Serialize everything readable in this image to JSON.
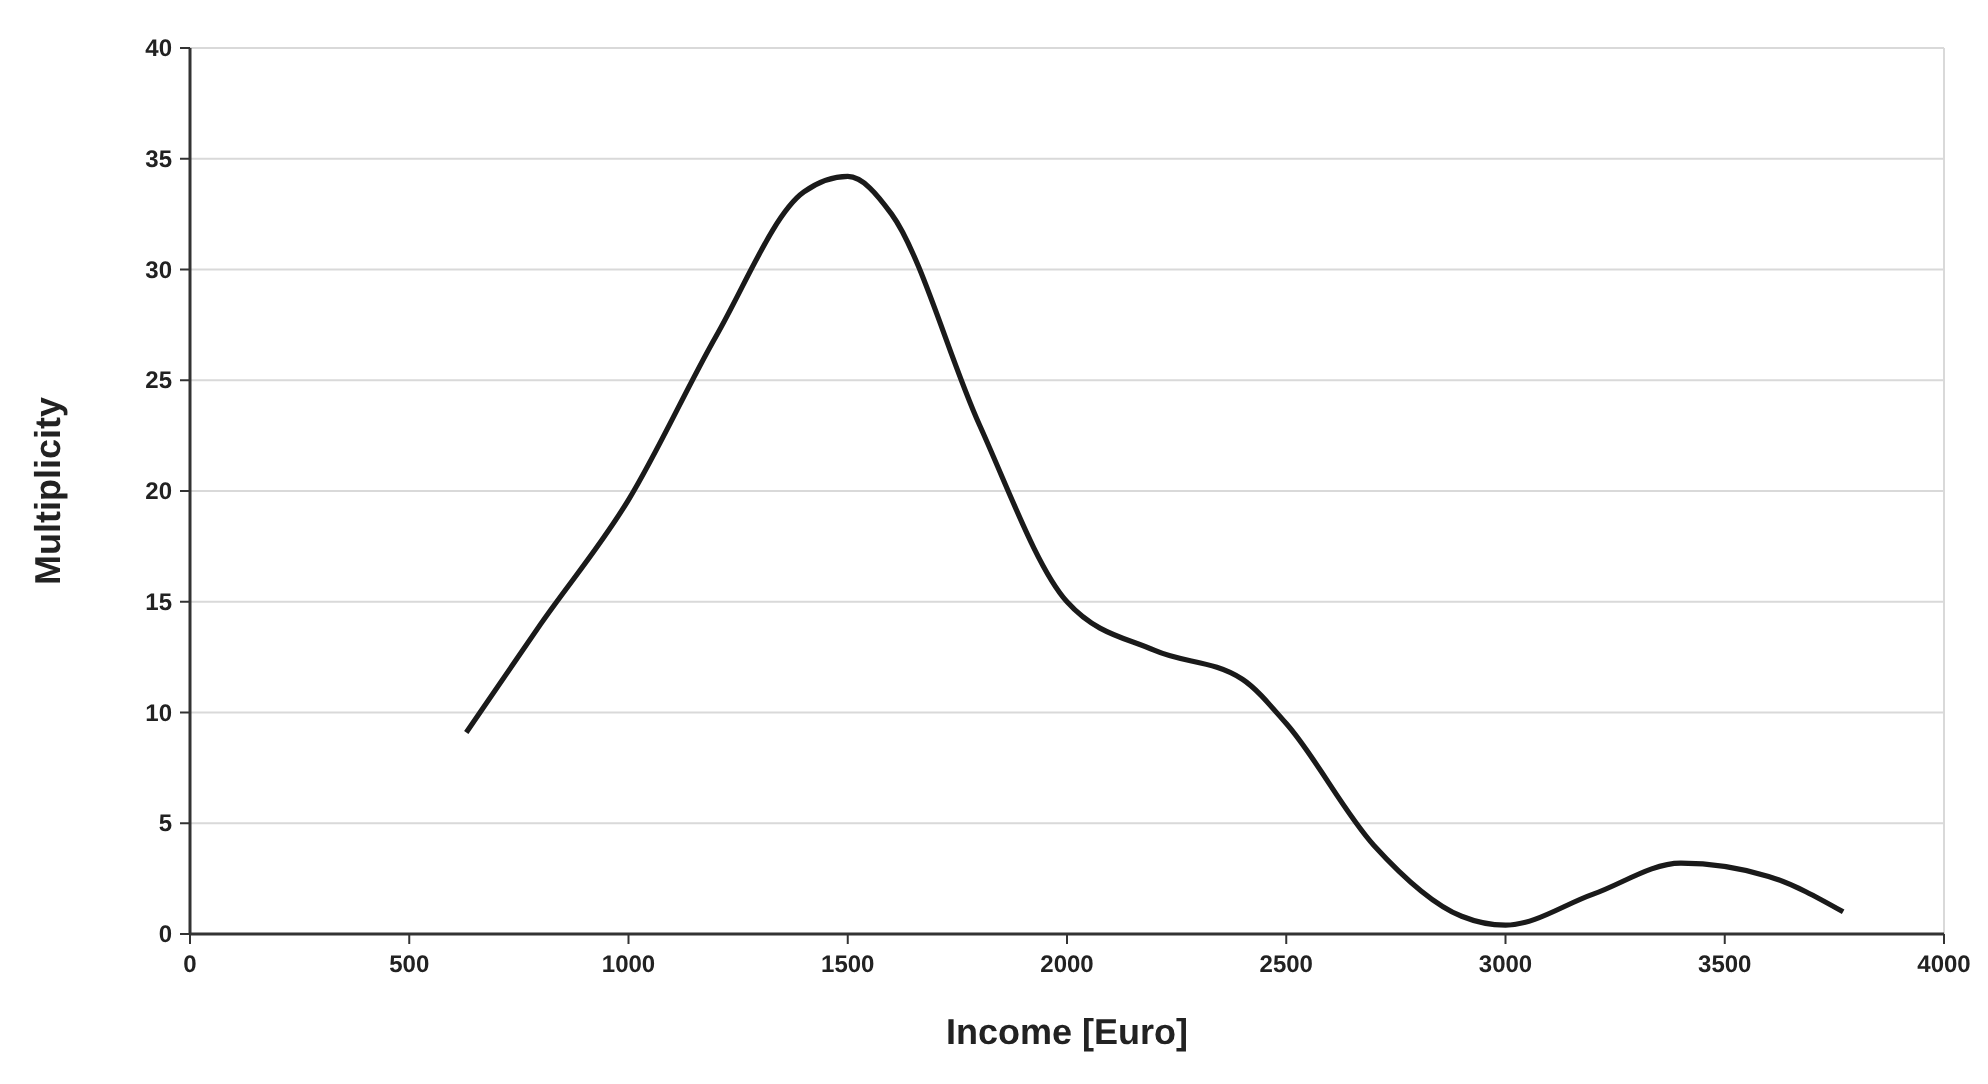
{
  "chart_data": {
    "type": "line",
    "xlabel": "Income [Euro]",
    "ylabel": "Multiplicity",
    "x": [
      630,
      800,
      1000,
      1200,
      1400,
      1500,
      1600,
      1800,
      2000,
      2200,
      2400,
      2500,
      2700,
      2900,
      3000,
      3200,
      3400,
      3600,
      3770
    ],
    "series": [
      {
        "color": "#1a1a1a",
        "values": [
          9.1,
          14,
          19.6,
          27,
          33.5,
          34.2,
          32.5,
          23,
          15,
          12.8,
          11.5,
          9.5,
          4,
          0.8,
          0.4,
          1.8,
          3.2,
          2.6,
          1.0
        ]
      }
    ],
    "xlim": [
      0,
      4000
    ],
    "xticks": [
      0,
      500,
      1000,
      1500,
      2000,
      2500,
      3000,
      3500,
      4000
    ],
    "ylim": [
      0,
      40
    ],
    "yticks": [
      0,
      5,
      10,
      15,
      20,
      25,
      30,
      35,
      40
    ],
    "grid": "y",
    "marker": "none",
    "line_style": "solid"
  }
}
